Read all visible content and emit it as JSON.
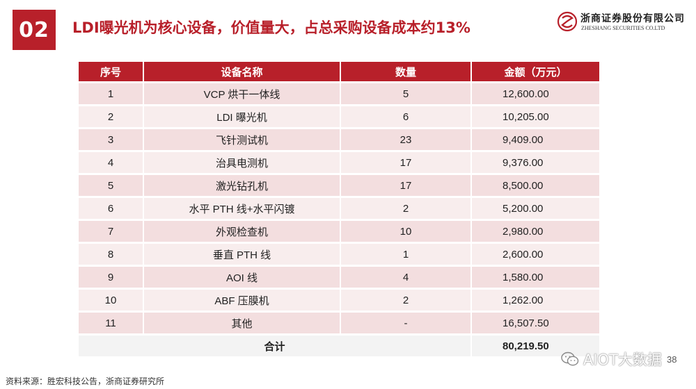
{
  "slide": {
    "number": "02",
    "title": "LDI曝光机为核心设备，价值量大，占总采购设备成本约13%"
  },
  "logo": {
    "name_cn": "浙商证券股份有限公司",
    "name_en": "ZHESHANG SECURITIES CO.LTD"
  },
  "table": {
    "headers": [
      "序号",
      "设备名称",
      "数量",
      "金额（万元）"
    ],
    "rows": [
      {
        "no": "1",
        "name": "VCP 烘干一体线",
        "qty": "5",
        "amount": "12,600.00"
      },
      {
        "no": "2",
        "name": "LDI 曝光机",
        "qty": "6",
        "amount": "10,205.00"
      },
      {
        "no": "3",
        "name": "飞针测试机",
        "qty": "23",
        "amount": "9,409.00"
      },
      {
        "no": "4",
        "name": "治具电测机",
        "qty": "17",
        "amount": "9,376.00"
      },
      {
        "no": "5",
        "name": "激光钻孔机",
        "qty": "17",
        "amount": "8,500.00"
      },
      {
        "no": "6",
        "name": "水平 PTH 线+水平闪镀",
        "qty": "2",
        "amount": "5,200.00"
      },
      {
        "no": "7",
        "name": "外观检查机",
        "qty": "10",
        "amount": "2,980.00"
      },
      {
        "no": "8",
        "name": "垂直 PTH 线",
        "qty": "1",
        "amount": "2,600.00"
      },
      {
        "no": "9",
        "name": "AOI 线",
        "qty": "4",
        "amount": "1,580.00"
      },
      {
        "no": "10",
        "name": "ABF 压膜机",
        "qty": "2",
        "amount": "1,262.00"
      },
      {
        "no": "11",
        "name": "其他",
        "qty": "-",
        "amount": "16,507.50"
      }
    ],
    "total": {
      "label": "合计",
      "amount": "80,219.50"
    }
  },
  "source": "资料来源：胜宏科技公告，浙商证券研究所",
  "page_number": "38",
  "watermark": "AIOT大数据",
  "colors": {
    "accent": "#b8202a",
    "row_odd": "#f3dedf",
    "row_even": "#f8eded",
    "total_row": "#f3f3f3"
  }
}
